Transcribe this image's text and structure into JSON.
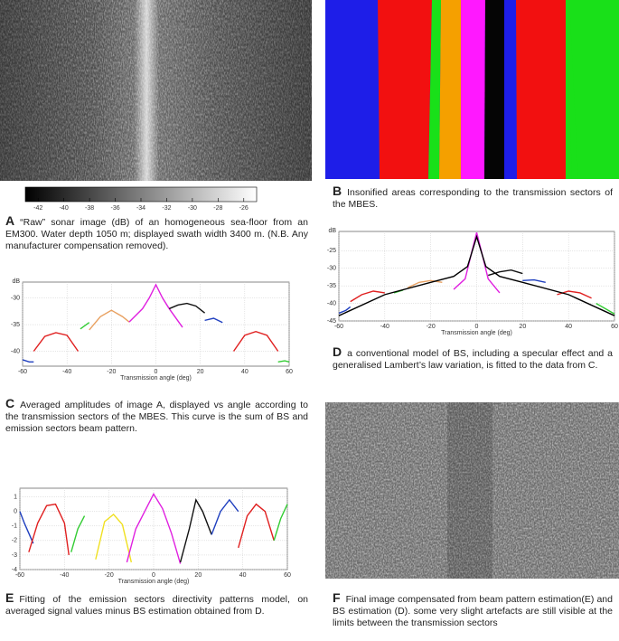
{
  "panels": {
    "A": {
      "label": "A",
      "caption": "“Raw” sonar image (dB) of an homogeneous sea-floor from an EM300. Water depth 1050 m; displayed swath width 3400 m. (N.B. Any manufacturer compensation removed).",
      "colorbar": {
        "lim": [
          -43,
          -25
        ],
        "ticks": [
          -42,
          -40,
          -38,
          -36,
          -34,
          -32,
          -30,
          -28,
          -26
        ]
      }
    },
    "B": {
      "label": "B",
      "caption": "Insonified areas corresponding to the transmission sectors of the MBES."
    },
    "C": {
      "label": "C",
      "caption": "Averaged amplitudes of image A, displayed vs angle according to the transmission sectors of the MBES. This curve is the sum of BS and emission sectors beam pattern.",
      "chart": {
        "type": "line",
        "xlabel": "Transmission angle (deg)",
        "ylabel": "dB",
        "xlim": [
          -60,
          60
        ],
        "ylim": [
          -42.8,
          -27
        ],
        "xticks": [
          -60,
          -40,
          -20,
          0,
          20,
          40,
          60
        ],
        "yticks": [
          -30,
          -35,
          -40
        ],
        "grid": true,
        "series": [
          {
            "color": "#1f3fbf",
            "x": [
              -60,
              -57,
              -55
            ],
            "values": [
              -41.6,
              -42,
              -42
            ]
          },
          {
            "color": "#e02020",
            "x": [
              -55,
              -50,
              -45,
              -40,
              -35
            ],
            "values": [
              -40,
              -37.2,
              -36.5,
              -37,
              -40
            ]
          },
          {
            "color": "#33cc33",
            "x": [
              -34,
              -30
            ],
            "values": [
              -35.8,
              -34.6
            ]
          },
          {
            "color": "#e8a060",
            "x": [
              -30,
              -25,
              -20,
              -15,
              -12
            ],
            "values": [
              -36,
              -33.5,
              -32.3,
              -33.5,
              -34.5
            ]
          },
          {
            "color": "#e020e0",
            "x": [
              -12,
              -6,
              -3,
              0,
              3,
              6,
              12
            ],
            "values": [
              -34.5,
              -32,
              -30,
              -27.5,
              -30,
              -32,
              -35.5
            ]
          },
          {
            "color": "#111111",
            "x": [
              6,
              10,
              14,
              18,
              22
            ],
            "values": [
              -32,
              -31.3,
              -31,
              -31.5,
              -32.8
            ]
          },
          {
            "color": "#1f3fbf",
            "x": [
              22,
              26,
              30
            ],
            "values": [
              -34.2,
              -33.8,
              -34.6
            ]
          },
          {
            "color": "#e02020",
            "x": [
              35,
              40,
              45,
              50,
              55
            ],
            "values": [
              -40,
              -37,
              -36.3,
              -37,
              -40
            ]
          },
          {
            "color": "#33cc33",
            "x": [
              55,
              58,
              60
            ],
            "values": [
              -42,
              -41.8,
              -42
            ]
          }
        ]
      }
    },
    "D": {
      "label": "D",
      "caption": "a conventional model of BS, including a specular effect and a generalised Lambert’s law variation, is fitted to the data from C.",
      "chart": {
        "type": "line",
        "xlabel": "Transmission angle (deg)",
        "ylabel": "dB",
        "xlim": [
          -60,
          60
        ],
        "ylim": [
          -45,
          -19.5
        ],
        "xticks": [
          -60,
          -40,
          -20,
          0,
          20,
          40,
          60
        ],
        "yticks": [
          -25,
          -30,
          -35,
          -40,
          -45
        ],
        "grid": true,
        "series": [
          {
            "color": "#1f3fbf",
            "x": [
              -60,
              -57,
              -55
            ],
            "values": [
              -42.8,
              -42,
              -41
            ]
          },
          {
            "color": "#e02020",
            "x": [
              -55,
              -50,
              -45,
              -40
            ],
            "values": [
              -39.5,
              -37.5,
              -36.5,
              -37
            ]
          },
          {
            "color": "#33cc33",
            "x": [
              -36,
              -32
            ],
            "values": [
              -37,
              -36.2
            ]
          },
          {
            "color": "#e8a060",
            "x": [
              -30,
              -25,
              -20,
              -15
            ],
            "values": [
              -35.5,
              -34,
              -33.5,
              -34
            ]
          },
          {
            "color": "#e020e0",
            "x": [
              -10,
              -5,
              -2,
              0,
              2,
              5,
              10
            ],
            "values": [
              -36,
              -33,
              -25,
              -19.8,
              -25,
              -33,
              -37
            ]
          },
          {
            "color": "#111111",
            "x": [
              5,
              10,
              15,
              20
            ],
            "values": [
              -32,
              -31,
              -30.5,
              -31.5
            ]
          },
          {
            "color": "#1f3fbf",
            "x": [
              20,
              25,
              30
            ],
            "values": [
              -33.5,
              -33.3,
              -34
            ]
          },
          {
            "color": "#e02020",
            "x": [
              35,
              40,
              45,
              50
            ],
            "values": [
              -37.5,
              -36.5,
              -37,
              -38.5
            ]
          },
          {
            "color": "#33cc33",
            "x": [
              52,
              56,
              60
            ],
            "values": [
              -40,
              -41.5,
              -43
            ]
          },
          {
            "color": "#000000",
            "x": [
              -60,
              -40,
              -20,
              -10,
              -4,
              0,
              4,
              10,
              20,
              40,
              60
            ],
            "values": [
              -43.5,
              -37.5,
              -34,
              -32.3,
              -29.5,
              -21,
              -29.5,
              -32.3,
              -34,
              -37.5,
              -43.5
            ]
          }
        ]
      }
    },
    "E": {
      "label": "E",
      "caption": "Fitting of the emission sectors directivity patterns model, on averaged signal values minus BS estimation obtained from D.",
      "chart": {
        "type": "line",
        "xlabel": "Transmission angle (deg)",
        "xlim": [
          -60,
          60
        ],
        "ylim": [
          -4,
          1.6
        ],
        "xticks": [
          -60,
          -40,
          -20,
          0,
          20,
          40,
          60
        ],
        "yticks": [
          1,
          0,
          -1,
          -2,
          -3,
          -4
        ],
        "grid": true,
        "series": [
          {
            "color": "#1f3fbf",
            "x": [
              -60,
              -58,
              -56,
              -54
            ],
            "values": [
              0,
              -0.8,
              -1.5,
              -2.2
            ]
          },
          {
            "color": "#e02020",
            "x": [
              -56,
              -52,
              -48,
              -44,
              -40,
              -38
            ],
            "values": [
              -2.8,
              -0.8,
              0.4,
              0.5,
              -0.8,
              -3
            ]
          },
          {
            "color": "#33cc33",
            "x": [
              -37,
              -34,
              -31
            ],
            "values": [
              -2.8,
              -1.2,
              -0.3
            ]
          },
          {
            "color": "#f0e020",
            "x": [
              -26,
              -22,
              -18,
              -14,
              -10
            ],
            "values": [
              -3.3,
              -0.7,
              -0.2,
              -0.9,
              -3.5
            ]
          },
          {
            "color": "#e020e0",
            "x": [
              -12,
              -8,
              -4,
              0,
              4,
              8,
              12
            ],
            "values": [
              -3.5,
              -1.2,
              0,
              1.2,
              0.2,
              -1.5,
              -3.6
            ]
          },
          {
            "color": "#111111",
            "x": [
              12,
              16,
              19,
              22,
              26
            ],
            "values": [
              -3.5,
              -1.2,
              0.8,
              0,
              -1.6
            ]
          },
          {
            "color": "#1f3fbf",
            "x": [
              26,
              30,
              34,
              38
            ],
            "values": [
              -1.6,
              0,
              0.8,
              0
            ]
          },
          {
            "color": "#e02020",
            "x": [
              38,
              42,
              46,
              50,
              54
            ],
            "values": [
              -2.5,
              -0.3,
              0.5,
              0,
              -2
            ]
          },
          {
            "color": "#33cc33",
            "x": [
              54,
              57,
              60
            ],
            "values": [
              -2,
              -0.5,
              0.5
            ]
          }
        ]
      }
    },
    "F": {
      "label": "F",
      "caption": "Final image compensated from beam pattern estimation(E) and BS estimation (D). some very slight artefacts are still visible at the limits between the transmission sectors"
    }
  }
}
